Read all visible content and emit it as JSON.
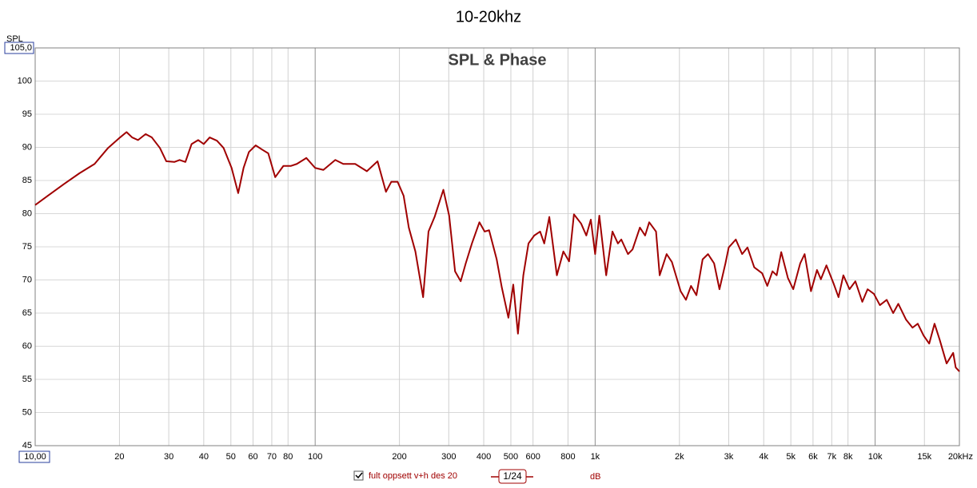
{
  "chart_data": {
    "type": "line",
    "title": "10-20khz",
    "subtitle": "SPL & Phase",
    "y_label": "SPL",
    "x_scale": "log",
    "grid": true,
    "xlim": [
      10,
      20000
    ],
    "ylim": [
      45,
      105
    ],
    "xticks": [
      {
        "value": 10,
        "label": "10,00"
      },
      20,
      30,
      40,
      50,
      60,
      70,
      80,
      100,
      200,
      300,
      400,
      500,
      600,
      800,
      {
        "value": 1000,
        "label": "1k"
      },
      {
        "value": 2000,
        "label": "2k"
      },
      {
        "value": 3000,
        "label": "3k"
      },
      {
        "value": 4000,
        "label": "4k"
      },
      {
        "value": 5000,
        "label": "5k"
      },
      {
        "value": 6000,
        "label": "6k"
      },
      {
        "value": 7000,
        "label": "7k"
      },
      {
        "value": 8000,
        "label": "8k"
      },
      {
        "value": 10000,
        "label": "10k"
      },
      {
        "value": 15000,
        "label": "15k"
      },
      {
        "value": 20000,
        "label": "20kHz"
      }
    ],
    "yticks": [
      45,
      50,
      55,
      60,
      65,
      70,
      75,
      80,
      85,
      90,
      95,
      100,
      {
        "value": 105,
        "label": "105,0"
      }
    ],
    "x": [
      10,
      11.1,
      12.7,
      14.4,
      16.3,
      18.2,
      20.1,
      21.2,
      22.2,
      23.3,
      24.8,
      26.1,
      27.9,
      29.4,
      31.4,
      32.8,
      34.4,
      36.2,
      38.2,
      40,
      42,
      44.6,
      47.1,
      50.3,
      53.1,
      55.5,
      58,
      61.3,
      65,
      68,
      72,
      77,
      82,
      86,
      93,
      100,
      107,
      118,
      126,
      139,
      153,
      167,
      179,
      187,
      197,
      207,
      216,
      228,
      243,
      254,
      267,
      287,
      301,
      316,
      331,
      345,
      363,
      386,
      403,
      418,
      445,
      464,
      490,
      510,
      530,
      554,
      578,
      606,
      636,
      658,
      686,
      730,
      770,
      807,
      840,
      891,
      930,
      965,
      1000,
      1035,
      1095,
      1153,
      1206,
      1240,
      1310,
      1360,
      1445,
      1508,
      1560,
      1650,
      1700,
      1800,
      1880,
      2020,
      2110,
      2200,
      2300,
      2420,
      2530,
      2660,
      2780,
      2920,
      3000,
      3180,
      3350,
      3500,
      3700,
      3950,
      4120,
      4300,
      4450,
      4620,
      4880,
      5100,
      5400,
      5600,
      5900,
      6200,
      6400,
      6700,
      7100,
      7400,
      7700,
      8100,
      8500,
      9000,
      9400,
      9900,
      10400,
      11000,
      11600,
      12100,
      12900,
      13600,
      14200,
      14900,
      15600,
      16300,
      17000,
      18000,
      19000,
      19400,
      20000
    ],
    "series": [
      {
        "name": "fult oppsett v+h des 20",
        "color": "#a00000",
        "values": [
          81.3,
          82.7,
          84.5,
          86.1,
          87.5,
          89.9,
          91.5,
          92.3,
          91.5,
          91.1,
          92.0,
          91.5,
          89.9,
          87.9,
          87.8,
          88.1,
          87.8,
          90.5,
          91.1,
          90.5,
          91.5,
          91.0,
          89.9,
          86.9,
          83.1,
          86.9,
          89.3,
          90.3,
          89.6,
          89.1,
          85.5,
          87.2,
          87.2,
          87.5,
          88.4,
          86.9,
          86.6,
          88.1,
          87.5,
          87.5,
          86.4,
          87.9,
          83.3,
          84.8,
          84.8,
          82.7,
          77.9,
          74.3,
          67.4,
          77.3,
          79.5,
          83.6,
          79.7,
          71.3,
          69.8,
          72.5,
          75.5,
          78.7,
          77.3,
          77.5,
          73.1,
          68.9,
          64.3,
          69.3,
          61.9,
          70.7,
          75.5,
          76.7,
          77.3,
          75.5,
          79.5,
          70.7,
          74.3,
          72.8,
          79.9,
          78.5,
          76.7,
          79.1,
          73.9,
          79.7,
          70.7,
          77.3,
          75.5,
          76.1,
          73.9,
          74.6,
          77.9,
          76.7,
          78.7,
          77.3,
          70.7,
          73.9,
          72.7,
          68.3,
          67.0,
          69.1,
          67.7,
          73.1,
          73.9,
          72.5,
          68.6,
          72.5,
          74.9,
          76.1,
          73.9,
          74.9,
          71.9,
          71.0,
          69.1,
          71.3,
          70.7,
          74.2,
          70.3,
          68.6,
          72.5,
          73.9,
          68.3,
          71.5,
          70.1,
          72.2,
          69.5,
          67.4,
          70.7,
          68.6,
          69.8,
          66.7,
          68.6,
          67.9,
          66.2,
          67.0,
          65.0,
          66.4,
          64.0,
          62.8,
          63.4,
          61.6,
          60.4,
          63.4,
          61.0,
          57.4,
          59.0,
          56.8,
          56.2
        ]
      }
    ],
    "legend": {
      "smoothing": "1/24",
      "unit": "dB"
    }
  }
}
